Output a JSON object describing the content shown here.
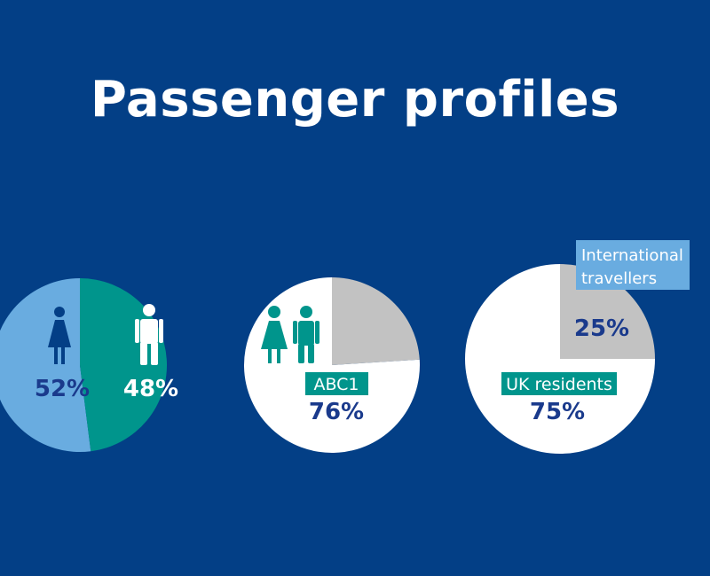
{
  "title": "Passenger profiles",
  "colors": {
    "background": "#033f86",
    "light_blue": "#69ace0",
    "teal": "#00958c",
    "white": "#ffffff",
    "grey": "#c2c2c2",
    "navy_text": "#1a3a8c"
  },
  "chart_data": [
    {
      "type": "pie",
      "slices": [
        {
          "value": 52,
          "label": "52%",
          "icon": "female-icon",
          "color": "#69ace0"
        },
        {
          "value": 48,
          "label": "48%",
          "icon": "male-icon",
          "color": "#00958c"
        }
      ]
    },
    {
      "type": "pie",
      "slices": [
        {
          "value": 76,
          "label": "76%",
          "category": "ABC1",
          "icon": "couple-icon",
          "color": "#ffffff"
        },
        {
          "value": 24,
          "label": "",
          "color": "#c2c2c2"
        }
      ]
    },
    {
      "type": "pie",
      "slices": [
        {
          "value": 75,
          "label": "75%",
          "category": "UK residents",
          "color": "#ffffff"
        },
        {
          "value": 25,
          "label": "25%",
          "category": "International travellers",
          "color": "#c2c2c2"
        }
      ]
    }
  ]
}
